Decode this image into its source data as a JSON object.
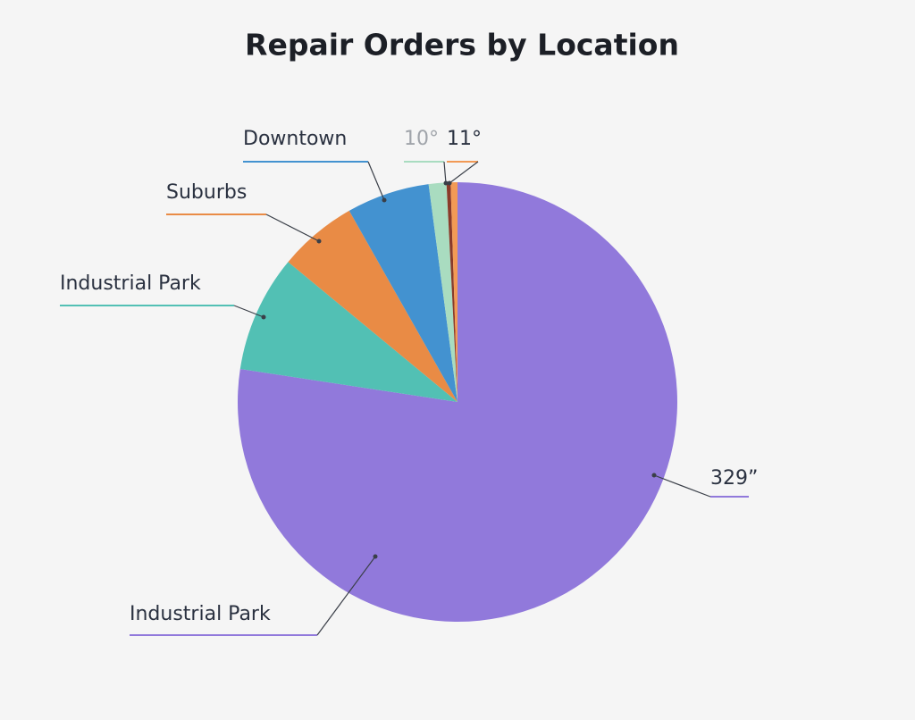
{
  "chart_data": {
    "type": "pie",
    "title": "Repair Orders by Location",
    "categories": [
      "Industrial Park",
      "Industrial Park",
      "Suburbs",
      "Downtown",
      "10°",
      null,
      "11°"
    ],
    "values": [
      77.4,
      8.6,
      5.8,
      6.1,
      1.3,
      0.3,
      0.5
    ],
    "colors": [
      "#9179db",
      "#52c0b4",
      "#e98b45",
      "#4392d0",
      "#a9dcc0",
      "#8a3b2a",
      "#f29a55"
    ],
    "annotations": [
      "329”"
    ]
  }
}
